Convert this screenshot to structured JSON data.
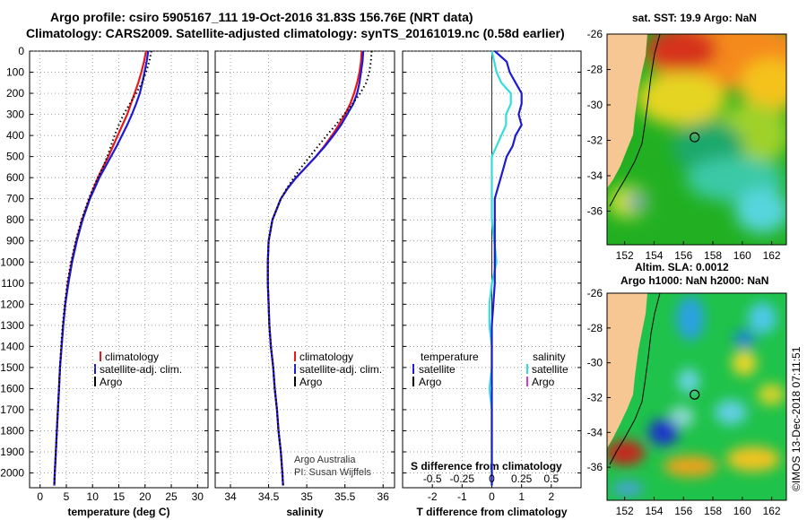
{
  "header": {
    "line1": "Argo profile: csiro 5905167_111 19-Oct-2016 31.83S 156.76E (NRT data)",
    "line2": "Climatology: CARS2009. Satellite-adjusted climatology: synTS_20161019.nc (0.58d earlier)"
  },
  "colors": {
    "climatology": "#e8171e",
    "satellite": "#1b1bd6",
    "argo": "#000000",
    "sal_diff": "#33dddd",
    "argo_sal": "#d13bd1",
    "land": "#f7c793"
  },
  "credit": {
    "line1": "Argo Australia",
    "line2": "PI: Susan Wijffels"
  },
  "stamp": "©IMOS 13-Dec-2018 07:11:51",
  "chart_data": [
    {
      "type": "line",
      "name": "temperature-profile",
      "xlabel": "temperature (deg C)",
      "ylabel": "",
      "xlim": [
        -2,
        32
      ],
      "ylim": [
        2070,
        0
      ],
      "xticks": [
        0,
        5,
        10,
        15,
        20,
        25,
        30
      ],
      "yticks": [
        0,
        100,
        200,
        300,
        400,
        500,
        600,
        700,
        800,
        900,
        1000,
        1100,
        1200,
        1300,
        1400,
        1500,
        1600,
        1700,
        1800,
        1900,
        2000
      ],
      "grid": true,
      "legend": [
        "climatology",
        "satellite-adj. clim.",
        "Argo"
      ],
      "depth": [
        0,
        50,
        100,
        150,
        200,
        250,
        300,
        350,
        400,
        450,
        500,
        550,
        600,
        650,
        700,
        800,
        900,
        1000,
        1100,
        1200,
        1300,
        1400,
        1500,
        1600,
        1700,
        1800,
        1900,
        2000,
        2060
      ],
      "series": [
        {
          "name": "climatology",
          "values": [
            20.2,
            19.8,
            19.3,
            18.7,
            18.0,
            17.3,
            16.6,
            15.7,
            14.8,
            13.9,
            13.0,
            12.0,
            11.0,
            10.2,
            9.4,
            8.0,
            6.9,
            6.0,
            5.3,
            4.8,
            4.4,
            4.1,
            3.8,
            3.6,
            3.4,
            3.2,
            3.0,
            2.8,
            2.7
          ]
        },
        {
          "name": "satellite-adj. clim.",
          "values": [
            20.6,
            20.3,
            19.9,
            19.5,
            19.0,
            18.3,
            17.5,
            16.6,
            15.6,
            14.6,
            13.5,
            12.4,
            11.3,
            10.4,
            9.5,
            8.1,
            7.0,
            6.1,
            5.4,
            4.8,
            4.4,
            4.1,
            3.8,
            3.6,
            3.4,
            3.2,
            3.0,
            2.8,
            2.7
          ]
        },
        {
          "name": "Argo",
          "values": [
            21.2,
            20.8,
            20.2,
            19.4,
            18.3,
            17.1,
            15.9,
            15.0,
            14.2,
            13.5,
            12.8,
            12.0,
            11.0,
            10.1,
            9.3,
            7.9,
            6.8,
            5.9,
            5.2,
            4.7,
            4.3,
            4.0,
            3.8,
            3.6,
            3.4,
            3.2,
            3.0,
            2.8,
            2.7
          ]
        }
      ]
    },
    {
      "type": "line",
      "name": "salinity-profile",
      "xlabel": "salinity",
      "ylabel": "",
      "xlim": [
        33.8,
        36.15
      ],
      "ylim": [
        2070,
        0
      ],
      "xticks": [
        34,
        34.5,
        35,
        35.5,
        36
      ],
      "grid": true,
      "legend": [
        "climatology",
        "satellite-adj. clim.",
        "Argo"
      ],
      "depth": [
        0,
        50,
        100,
        150,
        200,
        250,
        300,
        350,
        400,
        450,
        500,
        550,
        600,
        650,
        700,
        800,
        900,
        1000,
        1100,
        1200,
        1300,
        1400,
        1500,
        1600,
        1700,
        1800,
        1900,
        2000,
        2060
      ],
      "series": [
        {
          "name": "climatology",
          "values": [
            35.72,
            35.71,
            35.69,
            35.66,
            35.62,
            35.57,
            35.5,
            35.42,
            35.33,
            35.23,
            35.12,
            34.99,
            34.86,
            34.75,
            34.66,
            34.55,
            34.5,
            34.49,
            34.49,
            34.5,
            34.51,
            34.53,
            34.56,
            34.58,
            34.61,
            34.63,
            34.66,
            34.68,
            34.69
          ]
        },
        {
          "name": "satellite-adj. clim.",
          "values": [
            35.74,
            35.73,
            35.71,
            35.69,
            35.66,
            35.61,
            35.53,
            35.45,
            35.35,
            35.24,
            35.12,
            34.99,
            34.86,
            34.75,
            34.66,
            34.55,
            34.5,
            34.49,
            34.49,
            34.5,
            34.51,
            34.53,
            34.56,
            34.58,
            34.61,
            34.63,
            34.66,
            34.68,
            34.69
          ]
        },
        {
          "name": "Argo",
          "values": [
            35.85,
            35.84,
            35.82,
            35.78,
            35.7,
            35.6,
            35.49,
            35.38,
            35.26,
            35.15,
            35.04,
            34.93,
            34.83,
            34.74,
            34.66,
            34.55,
            34.5,
            34.49,
            34.49,
            34.5,
            34.51,
            34.53,
            34.56,
            34.58,
            34.61,
            34.63,
            34.66,
            34.68,
            34.69
          ]
        }
      ],
      "annotations": [
        "Argo Australia",
        "PI: Susan Wijffels"
      ]
    },
    {
      "type": "line",
      "name": "difference-profile",
      "xlabel": "T difference from climatology",
      "xlabel2": "S difference from climatology",
      "xlim": [
        -3,
        3
      ],
      "xticks": [
        -2,
        -1,
        0,
        1,
        2
      ],
      "s_xticks_labels": [
        "-0.5",
        "-0.25",
        "0",
        "0.25",
        "0.5"
      ],
      "ylim": [
        2070,
        0
      ],
      "grid": true,
      "legend_left_title": "temperature",
      "legend_right_title": "salinity",
      "legend": [
        "satellite",
        "Argo"
      ],
      "depth": [
        0,
        50,
        100,
        150,
        200,
        250,
        300,
        350,
        400,
        450,
        500,
        550,
        600,
        650,
        700,
        800,
        900,
        1000,
        1100,
        1200,
        1300,
        1400,
        1500,
        1600,
        1700,
        1800,
        1900,
        2000,
        2060
      ],
      "series": [
        {
          "name": "T satellite",
          "values": [
            0.1,
            0.5,
            0.6,
            0.8,
            1.0,
            1.0,
            0.9,
            1.0,
            0.8,
            0.7,
            0.5,
            0.4,
            0.3,
            0.2,
            0.1,
            0.1,
            0.1,
            0.1,
            0.1,
            0.05,
            0.0,
            0.0,
            0.0,
            0.0,
            0.0,
            0.0,
            0.0,
            0.0,
            0.0
          ]
        },
        {
          "name": "S satellite",
          "values": [
            0.0,
            0.02,
            0.04,
            0.08,
            0.16,
            0.16,
            0.12,
            0.12,
            0.08,
            0.04,
            0.0,
            0.0,
            0.0,
            0.0,
            0.0,
            0.0,
            0.02,
            0.04,
            0.0,
            -0.02,
            -0.02,
            0.0,
            0.0,
            -0.02,
            0.0,
            0.0,
            0.0,
            0.0,
            0.0
          ]
        }
      ]
    },
    {
      "type": "heatmap",
      "name": "sst-map",
      "title": "sat. SST: 19.9 Argo: NaN",
      "xticks": [
        152,
        154,
        156,
        158,
        160,
        162
      ],
      "yticks": [
        -26,
        -28,
        -30,
        -32,
        -34,
        -36
      ],
      "xlim": [
        150.8,
        163
      ],
      "ylim": [
        -37.9,
        -26
      ],
      "float_position": [
        156.76,
        -31.83
      ]
    },
    {
      "type": "heatmap",
      "name": "sla-map",
      "title": "Altim. SLA: 0.0012",
      "subtitle": "Argo h1000: NaN h2000: NaN",
      "xticks": [
        152,
        154,
        156,
        158,
        160,
        162
      ],
      "yticks": [
        -26,
        -28,
        -30,
        -32,
        -34,
        -36
      ],
      "xlim": [
        150.8,
        163
      ],
      "ylim": [
        -37.9,
        -26
      ],
      "float_position": [
        156.76,
        -31.83
      ]
    }
  ]
}
